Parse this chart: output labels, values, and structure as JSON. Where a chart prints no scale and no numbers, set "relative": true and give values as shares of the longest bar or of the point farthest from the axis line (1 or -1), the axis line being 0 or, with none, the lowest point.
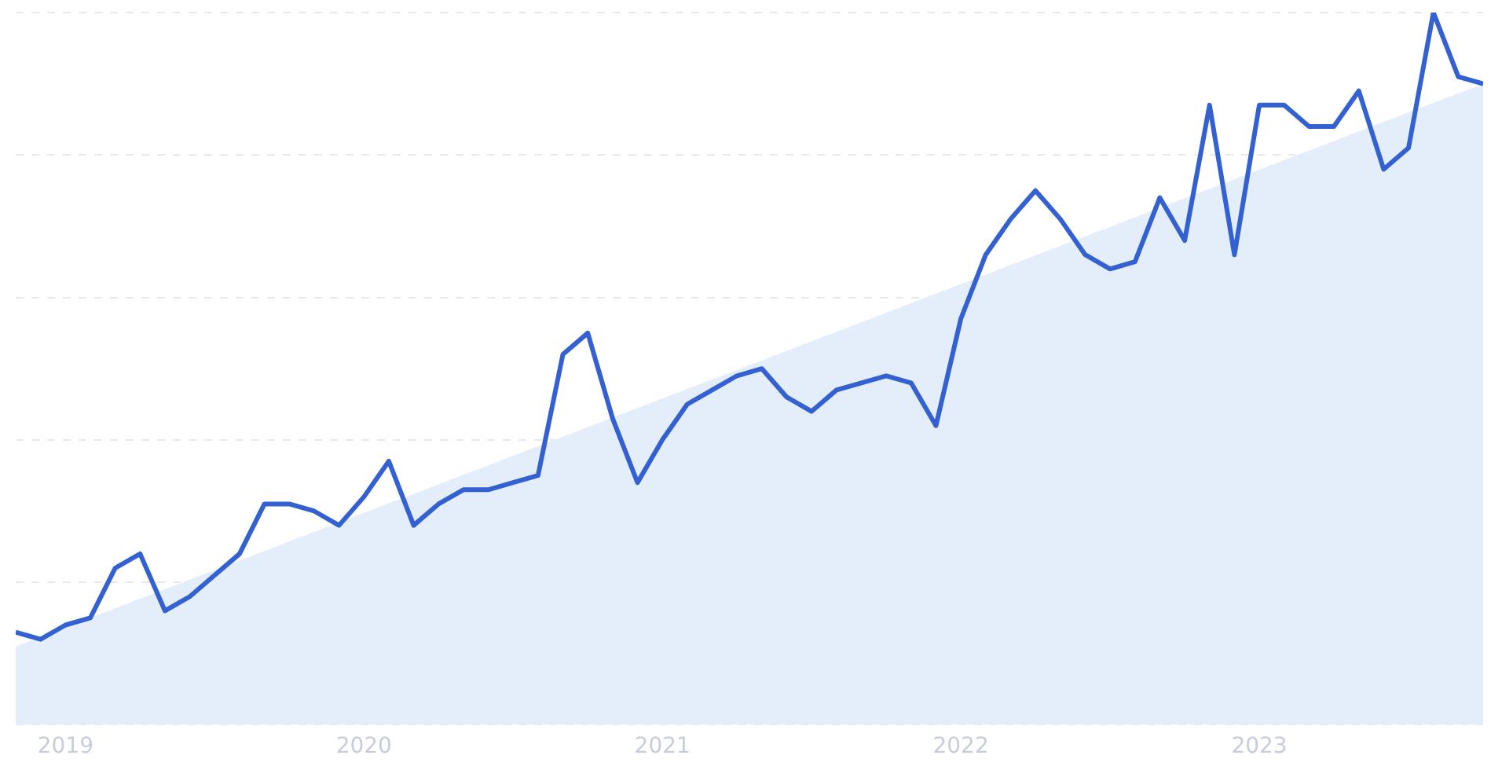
{
  "chart_data": {
    "type": "line",
    "relative": true,
    "grid": "y",
    "legend": false,
    "marker": "none",
    "x": [
      "2018-11",
      "2018-12",
      "2019-01",
      "2019-02",
      "2019-03",
      "2019-04",
      "2019-05",
      "2019-06",
      "2019-07",
      "2019-08",
      "2019-09",
      "2019-10",
      "2019-11",
      "2019-12",
      "2020-01",
      "2020-02",
      "2020-03",
      "2020-04",
      "2020-05",
      "2020-06",
      "2020-07",
      "2020-08",
      "2020-09",
      "2020-10",
      "2020-11",
      "2020-12",
      "2021-01",
      "2021-02",
      "2021-03",
      "2021-04",
      "2021-05",
      "2021-06",
      "2021-07",
      "2021-08",
      "2021-09",
      "2021-10",
      "2021-11",
      "2021-12",
      "2022-01",
      "2022-02",
      "2022-03",
      "2022-04",
      "2022-05",
      "2022-06",
      "2022-07",
      "2022-08",
      "2022-09",
      "2022-10",
      "2022-11",
      "2022-12",
      "2023-01",
      "2023-02",
      "2023-03",
      "2023-04",
      "2023-05",
      "2023-06",
      "2023-07",
      "2023-08",
      "2023-09",
      "2023-10"
    ],
    "xlim": [
      "2018-11",
      "2023-10"
    ],
    "xticks": [
      "2019",
      "2020",
      "2021",
      "2022",
      "2023"
    ],
    "series": [
      {
        "type": "area",
        "color": "#e4eefb",
        "x": [
          "2018-11",
          "2023-10"
        ],
        "values": [
          0.11,
          0.9
        ]
      },
      {
        "color": "#3461d1",
        "values": [
          0.13,
          0.12,
          0.14,
          0.15,
          0.22,
          0.24,
          0.16,
          0.18,
          0.21,
          0.24,
          0.31,
          0.31,
          0.3,
          0.28,
          0.32,
          0.37,
          0.28,
          0.31,
          0.33,
          0.33,
          0.34,
          0.35,
          0.52,
          0.55,
          0.43,
          0.34,
          0.4,
          0.45,
          0.47,
          0.49,
          0.5,
          0.46,
          0.44,
          0.47,
          0.48,
          0.49,
          0.48,
          0.42,
          0.57,
          0.66,
          0.71,
          0.75,
          0.71,
          0.66,
          0.64,
          0.65,
          0.74,
          0.68,
          0.87,
          0.66,
          0.87,
          0.87,
          0.84,
          0.84,
          0.89,
          0.78,
          0.81,
          1,
          0.91,
          0.9
        ]
      }
    ]
  }
}
